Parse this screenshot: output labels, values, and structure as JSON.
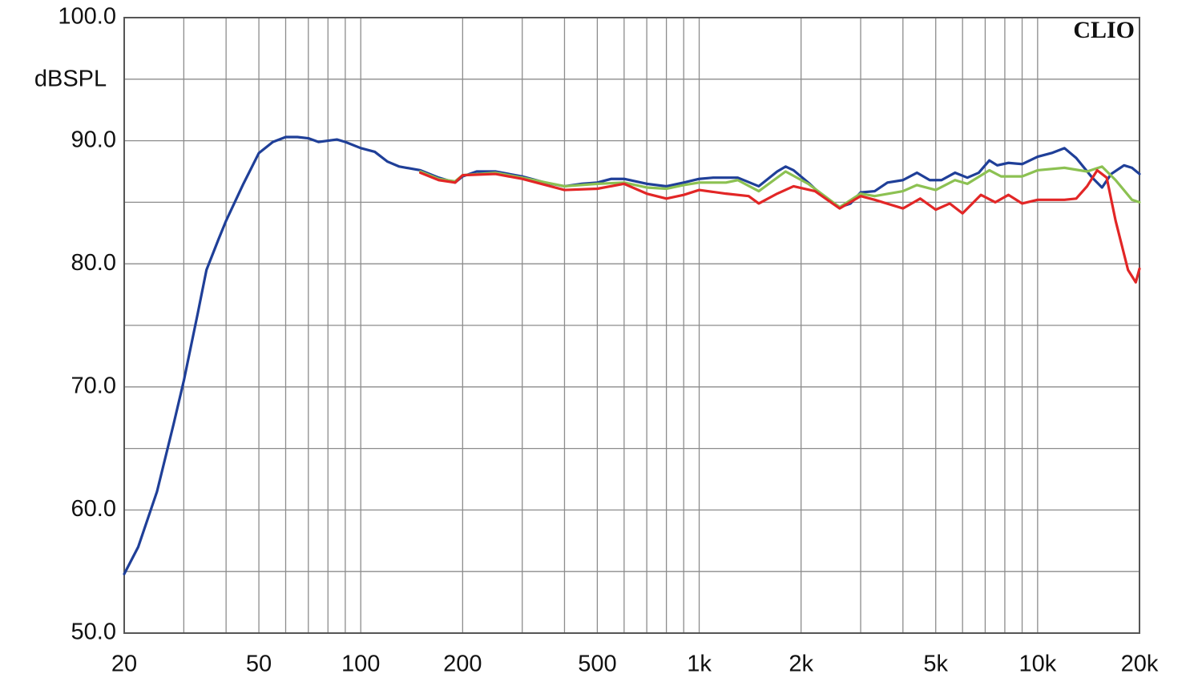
{
  "chart_data": {
    "type": "line",
    "ylabel": "dBSPL",
    "annotation": "CLIO",
    "xscale": "log",
    "grid": true,
    "xlim": [
      20,
      20000
    ],
    "ylim": [
      50,
      100
    ],
    "xticks": [
      20,
      50,
      100,
      200,
      500,
      {
        "value": 1000,
        "label": "1k"
      },
      {
        "value": 2000,
        "label": "2k"
      },
      {
        "value": 5000,
        "label": "5k"
      },
      {
        "value": 10000,
        "label": "10k"
      },
      {
        "value": 20000,
        "label": "20k"
      }
    ],
    "xminor": [
      30,
      40,
      60,
      70,
      80,
      90,
      300,
      400,
      600,
      700,
      800,
      900,
      3000,
      4000,
      6000,
      7000,
      8000,
      9000
    ],
    "yticks": [
      {
        "value": 50,
        "label": "50.0"
      },
      {
        "value": 60,
        "label": "60.0"
      },
      {
        "value": 70,
        "label": "70.0"
      },
      {
        "value": 80,
        "label": "80.0"
      },
      {
        "value": 90,
        "label": "90.0"
      },
      {
        "value": 100,
        "label": "100.0"
      }
    ],
    "yminor": [
      55,
      65,
      75,
      85,
      95
    ],
    "series": [
      {
        "color": "#1f3f98",
        "x": [
          20,
          22,
          25,
          28,
          30,
          33,
          35,
          38,
          40,
          45,
          50,
          55,
          60,
          65,
          70,
          75,
          80,
          85,
          90,
          100,
          110,
          120,
          130,
          150,
          170,
          190,
          200,
          220,
          250,
          300,
          350,
          400,
          450,
          500,
          550,
          600,
          700,
          800,
          900,
          1000,
          1100,
          1300,
          1500,
          1700,
          1800,
          1900,
          2100,
          2300,
          2600,
          2800,
          3000,
          3300,
          3600,
          4000,
          4400,
          4800,
          5200,
          5700,
          6200,
          6700,
          7200,
          7600,
          8200,
          9000,
          10000,
          11000,
          12000,
          13000,
          14500,
          15500,
          16500,
          18000,
          19000,
          20000
        ],
        "values": [
          54.8,
          57,
          61.5,
          67,
          70.5,
          76,
          79.5,
          82,
          83.5,
          86.5,
          89,
          89.9,
          90.3,
          90.3,
          90.2,
          89.9,
          90.0,
          90.1,
          89.9,
          89.4,
          89.1,
          88.3,
          87.9,
          87.6,
          87.0,
          86.6,
          87.1,
          87.5,
          87.5,
          87.1,
          86.6,
          86.3,
          86.5,
          86.6,
          86.9,
          86.9,
          86.5,
          86.3,
          86.6,
          86.9,
          87.0,
          87.0,
          86.3,
          87.5,
          87.9,
          87.6,
          86.6,
          85.6,
          84.6,
          84.9,
          85.8,
          85.9,
          86.6,
          86.8,
          87.4,
          86.8,
          86.8,
          87.4,
          87.0,
          87.4,
          88.4,
          88.0,
          88.2,
          88.1,
          88.7,
          89.0,
          89.4,
          88.6,
          87.0,
          86.2,
          87.3,
          88.0,
          87.8,
          87.3
        ]
      },
      {
        "color": "#8cc152",
        "x": [
          150,
          170,
          190,
          200,
          250,
          300,
          400,
          500,
          600,
          700,
          800,
          900,
          1000,
          1200,
          1300,
          1500,
          1800,
          2100,
          2600,
          3000,
          3300,
          4000,
          4400,
          5000,
          5700,
          6200,
          7200,
          7800,
          9000,
          10000,
          12000,
          14000,
          15500,
          17000,
          19000,
          20000
        ],
        "values": [
          87.5,
          86.9,
          86.7,
          87.2,
          87.4,
          87.0,
          86.3,
          86.5,
          86.6,
          86.2,
          86.1,
          86.4,
          86.6,
          86.6,
          86.8,
          85.9,
          87.5,
          86.5,
          84.6,
          85.7,
          85.5,
          85.9,
          86.4,
          86.0,
          86.8,
          86.5,
          87.6,
          87.1,
          87.1,
          87.6,
          87.8,
          87.5,
          87.9,
          86.8,
          85.2,
          85.0
        ]
      },
      {
        "color": "#e22626",
        "x": [
          150,
          170,
          190,
          200,
          250,
          300,
          400,
          500,
          600,
          700,
          800,
          900,
          1000,
          1200,
          1400,
          1500,
          1700,
          1900,
          2200,
          2600,
          3000,
          3300,
          4000,
          4500,
          5000,
          5500,
          6000,
          6800,
          7500,
          8200,
          9000,
          10000,
          12000,
          13000,
          14000,
          15000,
          16000,
          17000,
          18500,
          19500,
          20000
        ],
        "values": [
          87.4,
          86.8,
          86.6,
          87.2,
          87.3,
          86.9,
          86.0,
          86.1,
          86.5,
          85.7,
          85.3,
          85.6,
          86.0,
          85.7,
          85.5,
          84.9,
          85.7,
          86.3,
          85.9,
          84.5,
          85.5,
          85.2,
          84.5,
          85.3,
          84.4,
          84.9,
          84.1,
          85.6,
          85.0,
          85.6,
          84.9,
          85.2,
          85.2,
          85.3,
          86.3,
          87.6,
          87.0,
          83.5,
          79.5,
          78.5,
          79.6
        ]
      }
    ]
  }
}
